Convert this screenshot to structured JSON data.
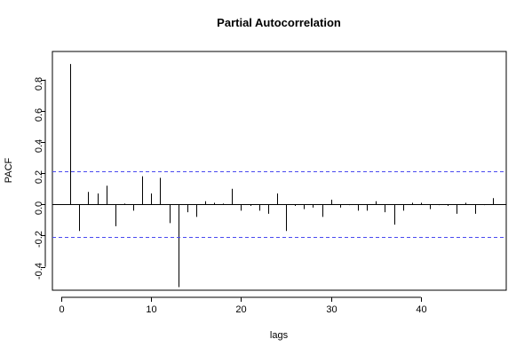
{
  "chart_data": {
    "type": "bar",
    "title": "Partial Autocorrelation",
    "xlabel": "lags",
    "ylabel": "PACF",
    "xlim": [
      -1,
      49.5
    ],
    "ylim": [
      -0.55,
      0.98
    ],
    "x_ticks": [
      0,
      10,
      20,
      30,
      40
    ],
    "y_ticks": [
      -0.4,
      -0.2,
      0.0,
      0.2,
      0.4,
      0.6,
      0.8
    ],
    "y_tick_labels": [
      "-0.4",
      "-0.2",
      "0.0",
      "0.2",
      "0.4",
      "0.6",
      "0.8"
    ],
    "confidence_bound": 0.21,
    "ci_color": "#4a4af0",
    "grid": false,
    "lags": [
      1,
      2,
      3,
      4,
      5,
      6,
      7,
      8,
      9,
      10,
      11,
      12,
      13,
      14,
      15,
      16,
      17,
      18,
      19,
      20,
      21,
      22,
      23,
      24,
      25,
      26,
      27,
      28,
      29,
      30,
      31,
      32,
      33,
      34,
      35,
      36,
      37,
      38,
      39,
      40,
      41,
      42,
      43,
      44,
      45,
      46,
      47,
      48
    ],
    "values": [
      0.9,
      -0.17,
      0.08,
      0.07,
      0.12,
      -0.14,
      0.005,
      -0.04,
      0.18,
      0.07,
      0.17,
      -0.12,
      -0.53,
      -0.05,
      -0.08,
      0.02,
      0.01,
      0.005,
      0.1,
      -0.04,
      -0.01,
      -0.04,
      -0.06,
      0.07,
      -0.17,
      -0.01,
      -0.03,
      -0.02,
      -0.08,
      0.03,
      -0.02,
      -0.005,
      -0.04,
      -0.04,
      0.02,
      -0.05,
      -0.13,
      -0.04,
      0.01,
      0.01,
      -0.03,
      -0.005,
      -0.01,
      -0.06,
      0.01,
      -0.06,
      -0.005,
      0.04
    ]
  }
}
